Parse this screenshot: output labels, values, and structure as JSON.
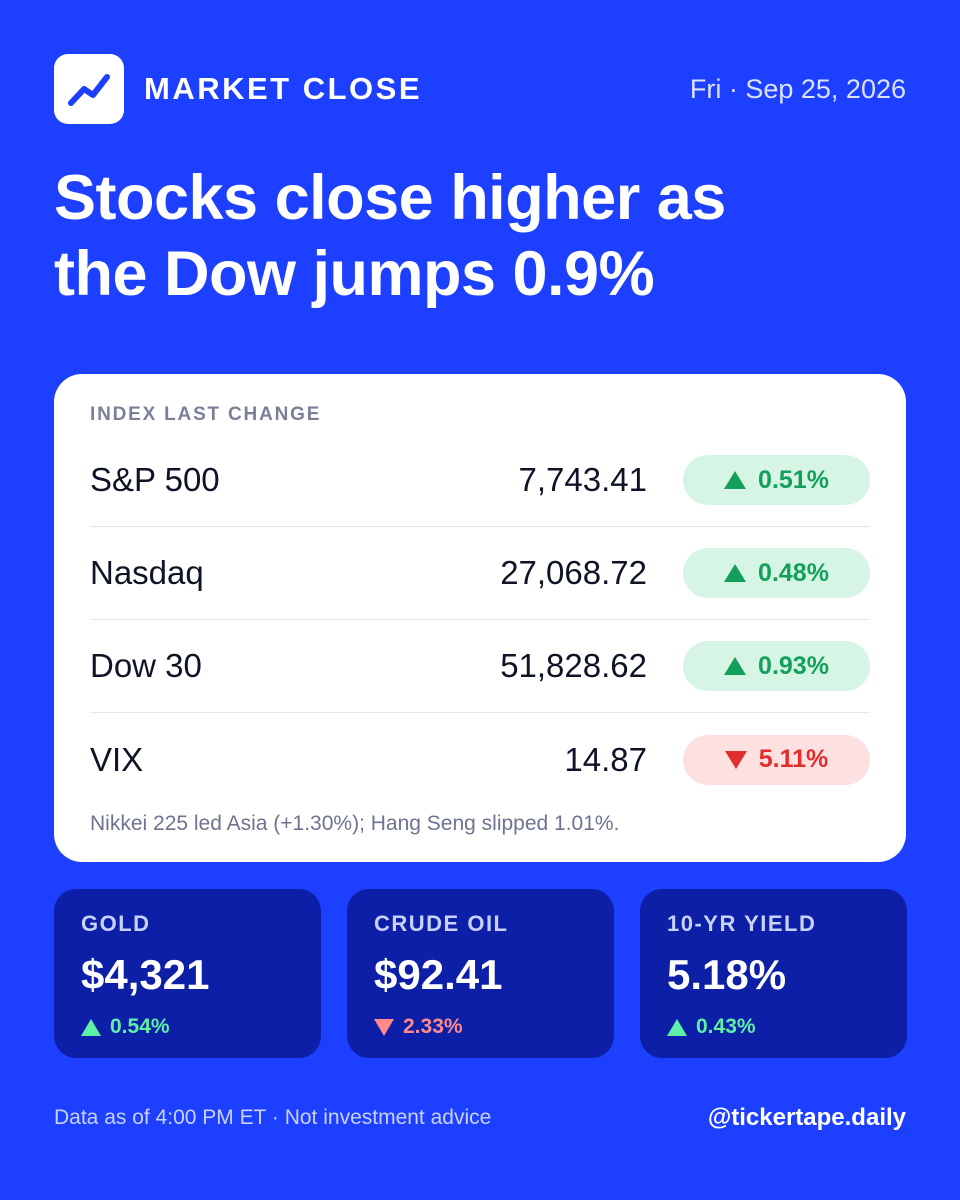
{
  "header": {
    "label": "MARKET CLOSE",
    "date": "Fri · Sep 25, 2026",
    "logo_icon": "trending-up-icon"
  },
  "headline": {
    "line1": "Stocks close higher as",
    "line2": "the Dow jumps 0.9%"
  },
  "index_table": {
    "header": "INDEX LAST CHANGE",
    "rows": [
      {
        "name": "S&P 500",
        "last": "7,743.41",
        "change": "0.51%",
        "direction": "up"
      },
      {
        "name": "Nasdaq",
        "last": "27,068.72",
        "change": "0.48%",
        "direction": "up"
      },
      {
        "name": "Dow 30",
        "last": "51,828.62",
        "change": "0.93%",
        "direction": "up"
      },
      {
        "name": "VIX",
        "last": "14.87",
        "change": "5.11%",
        "direction": "down"
      }
    ],
    "note": "Nikkei 225 led Asia (+1.30%); Hang Seng slipped 1.01%."
  },
  "tiles": [
    {
      "label": "GOLD",
      "value": "$4,321",
      "change": "0.54%",
      "direction": "up"
    },
    {
      "label": "CRUDE OIL",
      "value": "$92.41",
      "change": "2.33%",
      "direction": "down"
    },
    {
      "label": "10-YR YIELD",
      "value": "5.18%",
      "change": "0.43%",
      "direction": "up"
    }
  ],
  "footer": {
    "disclaimer": "Data as of 4:00 PM ET · Not investment advice",
    "handle": "@tickertape.daily"
  },
  "colors": {
    "background": "#1d3fff",
    "tile": "#0c1fa6",
    "up": "#13a05a",
    "down": "#e02d2d"
  }
}
